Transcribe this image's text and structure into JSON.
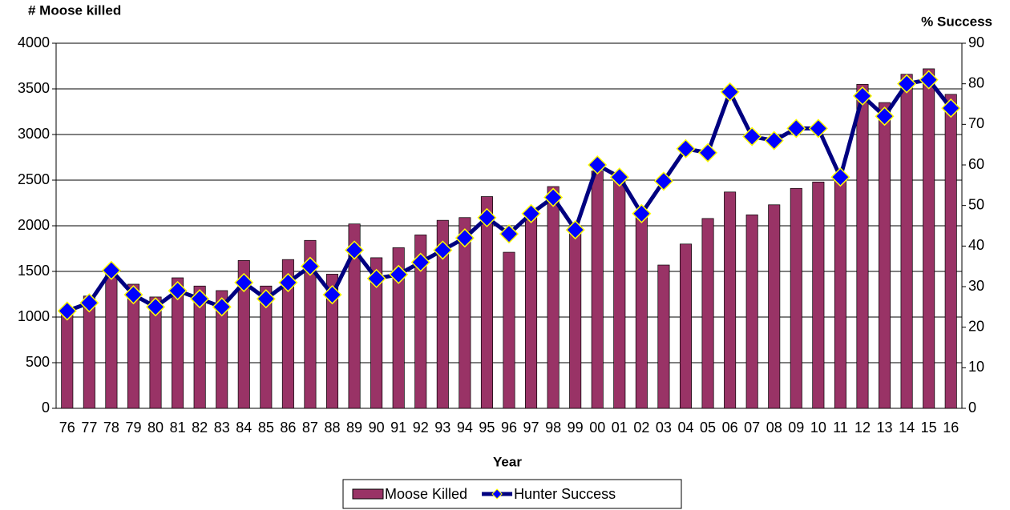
{
  "chart_data": {
    "type": "bar",
    "y_title": "# Moose killed",
    "y2_title": "%  Success",
    "x_title": "Year",
    "categories": [
      "76",
      "77",
      "78",
      "79",
      "80",
      "81",
      "82",
      "83",
      "84",
      "85",
      "86",
      "87",
      "88",
      "89",
      "90",
      "91",
      "92",
      "93",
      "94",
      "95",
      "96",
      "97",
      "98",
      "99",
      "00",
      "01",
      "02",
      "03",
      "04",
      "05",
      "06",
      "07",
      "08",
      "09",
      "10",
      "11",
      "12",
      "13",
      "14",
      "15",
      "16"
    ],
    "series": [
      {
        "name": "Moose Killed",
        "type": "bar",
        "axis": "y",
        "color": "#993366",
        "values": [
          1050,
          1230,
          1500,
          1360,
          1220,
          1430,
          1340,
          1290,
          1620,
          1340,
          1630,
          1840,
          1470,
          2020,
          1650,
          1760,
          1900,
          2060,
          2090,
          2320,
          1710,
          2100,
          2430,
          2000,
          2600,
          2520,
          2100,
          1570,
          1800,
          2080,
          2370,
          2120,
          2230,
          2410,
          2480,
          2560,
          3550,
          3350,
          3660,
          3720,
          3440
        ]
      },
      {
        "name": "Hunter Success",
        "type": "line",
        "axis": "y2",
        "color": "#000080",
        "marker_color": "#0000ff",
        "values": [
          24,
          26,
          34,
          28,
          25,
          29,
          27,
          25,
          31,
          27,
          31,
          35,
          28,
          39,
          32,
          33,
          36,
          39,
          42,
          47,
          43,
          48,
          52,
          44,
          60,
          57,
          48,
          56,
          64,
          63,
          78,
          67,
          66,
          69,
          69,
          57,
          77,
          72,
          80,
          81,
          74
        ]
      }
    ],
    "ylim": [
      0,
      4000
    ],
    "yticks": [
      0,
      500,
      1000,
      1500,
      2000,
      2500,
      3000,
      3500,
      4000
    ],
    "y2lim": [
      0,
      90
    ],
    "y2ticks": [
      0,
      10,
      20,
      30,
      40,
      50,
      60,
      70,
      80,
      90
    ],
    "grid": true,
    "legend": "bottom"
  }
}
